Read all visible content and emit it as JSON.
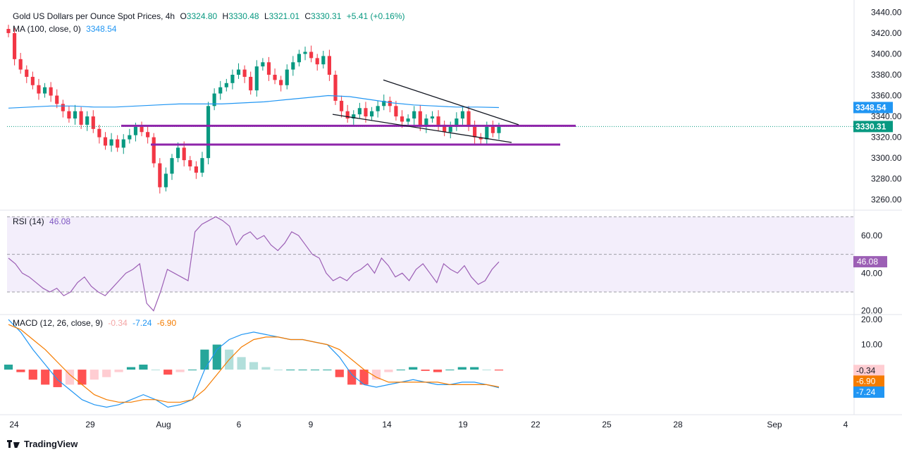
{
  "header": {
    "symbol": "Gold US Dollars per Ounce Spot Prices, 4h",
    "open_label": "O",
    "open": "3324.80",
    "high_label": "H",
    "high": "3330.48",
    "low_label": "L",
    "low": "3321.01",
    "close_label": "C",
    "close": "3330.31",
    "change": "+5.41 (+0.16%)"
  },
  "ma": {
    "label": "MA (100, close, 0)",
    "value": "3348.54"
  },
  "rsi_legend": {
    "label": "RSI (14)",
    "value": "46.08"
  },
  "macd_legend": {
    "label": "MACD (12, 26, close, 9)",
    "hist": "-0.34",
    "macd": "-7.24",
    "signal": "-6.90"
  },
  "branding": {
    "name": "TradingView"
  },
  "colors": {
    "up": "#089981",
    "down": "#f23645",
    "ma": "#2196f3",
    "support": "#8e24aa",
    "rsi": "#9c5fb5",
    "macd": "#2196f3",
    "signal": "#f57c00"
  },
  "chart_data": [
    {
      "type": "candlestick",
      "title": "Gold US Dollars per Ounce Spot Prices, 4h",
      "x_ticks": [
        "24",
        "29",
        "Aug",
        "6",
        "9",
        "14",
        "19",
        "22",
        "25",
        "28",
        "Sep",
        "4"
      ],
      "y_ticks": [
        3260,
        3280,
        3300,
        3320,
        3340,
        3360,
        3380,
        3400,
        3420,
        3440
      ],
      "ylim": [
        3250,
        3445
      ],
      "price_labels": {
        "ma": "3348.54",
        "last": "3330.31"
      },
      "close_series_approx": [
        3420,
        3395,
        3385,
        3378,
        3370,
        3362,
        3368,
        3360,
        3352,
        3345,
        3338,
        3345,
        3332,
        3340,
        3328,
        3320,
        3312,
        3318,
        3310,
        3318,
        3322,
        3330,
        3325,
        3320,
        3295,
        3272,
        3285,
        3300,
        3310,
        3298,
        3292,
        3286,
        3300,
        3350,
        3362,
        3368,
        3372,
        3380,
        3385,
        3378,
        3365,
        3388,
        3392,
        3380,
        3375,
        3370,
        3385,
        3392,
        3400,
        3402,
        3396,
        3390,
        3398,
        3380,
        3355,
        3345,
        3338,
        3342,
        3348,
        3340,
        3345,
        3350,
        3355,
        3350,
        3340,
        3335,
        3338,
        3345,
        3330,
        3338,
        3340,
        3332,
        3325,
        3330,
        3338,
        3345,
        3330,
        3320,
        3318,
        3330,
        3324,
        3330
      ],
      "annotations": [
        {
          "kind": "horizontal-level",
          "price": 3331,
          "from": "Jul 29",
          "to": "Aug 23"
        },
        {
          "kind": "horizontal-level",
          "price": 3313,
          "from": "Jul 31",
          "to": "Aug 22"
        },
        {
          "kind": "trendline",
          "role": "upper-wedge",
          "from_price": 3375,
          "to_price": 3332
        },
        {
          "kind": "trendline",
          "role": "lower-wedge",
          "from_price": 3342,
          "to_price": 3315
        }
      ],
      "series": [
        {
          "name": "MA (100, close, 0)",
          "last": 3348.54
        }
      ]
    },
    {
      "type": "line",
      "title": "RSI (14)",
      "y_ticks": [
        20.0,
        40.0,
        60.0
      ],
      "bands": [
        30,
        50,
        70
      ],
      "ylim": [
        18,
        72
      ],
      "last": 46.08,
      "values": [
        48,
        45,
        40,
        38,
        35,
        32,
        30,
        32,
        28,
        30,
        35,
        38,
        33,
        30,
        28,
        32,
        36,
        40,
        42,
        45,
        24,
        20,
        30,
        42,
        40,
        38,
        36,
        62,
        66,
        68,
        70,
        68,
        65,
        55,
        60,
        62,
        58,
        60,
        55,
        52,
        56,
        62,
        60,
        55,
        50,
        48,
        40,
        36,
        38,
        36,
        40,
        42,
        45,
        40,
        48,
        44,
        38,
        40,
        36,
        42,
        45,
        40,
        35,
        45,
        42,
        40,
        44,
        38,
        34,
        36,
        42,
        46
      ]
    },
    {
      "type": "bar-line",
      "title": "MACD (12, 26, close, 9)",
      "y_ticks": [
        10.0,
        20.0
      ],
      "ylim": [
        -18,
        22
      ],
      "last": {
        "histogram": -0.34,
        "macd": -7.24,
        "signal": -6.9
      },
      "macd": [
        20,
        15,
        8,
        2,
        -4,
        -8,
        -12,
        -14,
        -15,
        -14,
        -12,
        -10,
        -12,
        -15,
        -14,
        -12,
        0,
        8,
        12,
        14,
        15,
        14,
        13,
        12,
        12,
        11,
        10,
        5,
        -2,
        -6,
        -7,
        -6,
        -5,
        -4,
        -5,
        -6,
        -6,
        -5,
        -5,
        -6,
        -7.24
      ],
      "signal": [
        18,
        16,
        12,
        8,
        3,
        -2,
        -6,
        -10,
        -12,
        -13,
        -13,
        -12,
        -12,
        -13,
        -13,
        -12,
        -8,
        -2,
        4,
        9,
        12,
        13,
        13,
        12,
        12,
        11,
        10,
        8,
        4,
        0,
        -3,
        -5,
        -5,
        -5,
        -5,
        -5,
        -6,
        -6,
        -6,
        -6,
        -6.9
      ],
      "histogram": [
        2,
        -1,
        -4,
        -6,
        -7,
        -6,
        -6,
        -4,
        -3,
        -1,
        1,
        2,
        0,
        -2,
        -1,
        0,
        8,
        10,
        8,
        5,
        3,
        1,
        0,
        0,
        0,
        0,
        0,
        -3,
        -6,
        -6,
        -4,
        -1,
        0,
        1,
        -0.5,
        -1,
        0,
        1,
        1,
        0,
        -0.34
      ]
    }
  ]
}
